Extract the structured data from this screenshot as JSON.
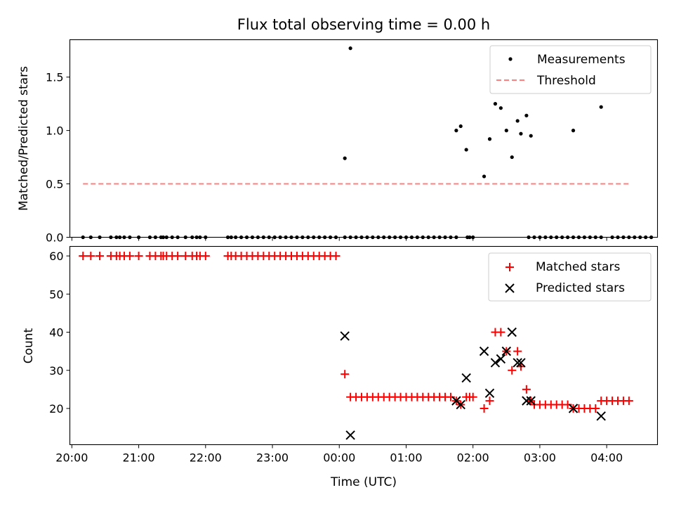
{
  "chart_data": [
    {
      "type": "scatter",
      "title": "Flux total observing time = 0.00 h",
      "xlabel": "",
      "ylabel": "Matched/Predicted stars",
      "ylim": [
        0,
        1.85
      ],
      "xlim_hours": [
        19.97,
        28.76
      ],
      "yticks": [
        0.0,
        0.5,
        1.0,
        1.5
      ],
      "ytick_labels": [
        "0.0",
        "0.5",
        "1.0",
        "1.5"
      ],
      "legend_position": "top-right",
      "colors": {
        "measurements": "#000000",
        "threshold": "#ff7f7f"
      },
      "series": [
        {
          "name": "Measurements",
          "kind": "points",
          "x": [
            "20:10",
            "20:17",
            "20:25",
            "20:35",
            "20:40",
            "20:43",
            "20:47",
            "20:52",
            "21:00",
            "21:10",
            "21:15",
            "21:20",
            "21:22",
            "21:25",
            "21:30",
            "21:35",
            "21:42",
            "21:48",
            "21:52",
            "21:55",
            "22:00",
            "22:20",
            "22:23",
            "22:27",
            "22:32",
            "22:37",
            "22:42",
            "22:47",
            "22:52",
            "22:57",
            "23:02",
            "23:07",
            "23:12",
            "23:17",
            "23:22",
            "23:27",
            "23:32",
            "23:37",
            "23:42",
            "23:47",
            "23:52",
            "23:57",
            "00:05",
            "00:10",
            "00:15",
            "00:20",
            "00:25",
            "00:30",
            "00:35",
            "00:40",
            "00:45",
            "00:50",
            "00:55",
            "01:00",
            "01:05",
            "01:10",
            "01:15",
            "01:20",
            "01:25",
            "01:30",
            "01:35",
            "01:40",
            "01:45",
            "01:55",
            "01:57",
            "02:00",
            "02:50",
            "02:55",
            "03:00",
            "03:05",
            "03:10",
            "03:15",
            "03:20",
            "03:25",
            "03:30",
            "03:35",
            "03:40",
            "03:45",
            "03:50",
            "03:55",
            "04:05",
            "04:10",
            "04:15",
            "04:20",
            "04:25",
            "04:30",
            "04:35",
            "04:40",
            "00:05",
            "00:10",
            "01:45",
            "01:49",
            "01:54",
            "02:10",
            "02:15",
            "02:20",
            "02:25",
            "02:30",
            "02:35",
            "02:40",
            "02:43",
            "02:48",
            "02:52",
            "03:30",
            "03:55"
          ],
          "y": [
            0,
            0,
            0,
            0,
            0,
            0,
            0,
            0,
            0,
            0,
            0,
            0,
            0,
            0,
            0,
            0,
            0,
            0,
            0,
            0,
            0,
            0,
            0,
            0,
            0,
            0,
            0,
            0,
            0,
            0,
            0,
            0,
            0,
            0,
            0,
            0,
            0,
            0,
            0,
            0,
            0,
            0,
            0,
            0,
            0,
            0,
            0,
            0,
            0,
            0,
            0,
            0,
            0,
            0,
            0,
            0,
            0,
            0,
            0,
            0,
            0,
            0,
            0,
            0,
            0,
            0,
            0,
            0,
            0,
            0,
            0,
            0,
            0,
            0,
            0,
            0,
            0,
            0,
            0,
            0,
            0,
            0,
            0,
            0,
            0,
            0,
            0,
            0,
            0.74,
            1.77,
            1.0,
            1.04,
            0.82,
            0.57,
            0.92,
            1.25,
            1.21,
            1.0,
            0.75,
            1.09,
            0.97,
            1.14,
            0.95,
            1.0,
            1.22
          ]
        },
        {
          "name": "Threshold",
          "kind": "dashed-line",
          "x": [
            "20:10",
            "04:20"
          ],
          "y": [
            0.5,
            0.5
          ]
        }
      ]
    },
    {
      "type": "scatter",
      "title": "",
      "xlabel": "Time (UTC)",
      "ylabel": "Count",
      "ylim": [
        10.5,
        62.5
      ],
      "yticks": [
        20,
        30,
        40,
        50,
        60
      ],
      "ytick_labels": [
        "20",
        "30",
        "40",
        "50",
        "60"
      ],
      "xticks": [
        "20:00",
        "21:00",
        "22:00",
        "23:00",
        "00:00",
        "01:00",
        "02:00",
        "03:00",
        "04:00"
      ],
      "legend_position": "top-right",
      "colors": {
        "matched": "#ff0000",
        "predicted": "#000000"
      },
      "series": [
        {
          "name": "Matched stars",
          "marker": "plus",
          "x": [
            "20:10",
            "20:17",
            "20:25",
            "20:35",
            "20:40",
            "20:43",
            "20:47",
            "20:52",
            "21:00",
            "21:10",
            "21:15",
            "21:20",
            "21:22",
            "21:25",
            "21:30",
            "21:35",
            "21:42",
            "21:48",
            "21:52",
            "21:55",
            "22:00",
            "22:20",
            "22:23",
            "22:27",
            "22:32",
            "22:37",
            "22:42",
            "22:47",
            "22:52",
            "22:57",
            "23:02",
            "23:07",
            "23:12",
            "23:17",
            "23:22",
            "23:27",
            "23:32",
            "23:37",
            "23:42",
            "23:47",
            "23:52",
            "23:57",
            "00:05",
            "00:10",
            "00:15",
            "00:20",
            "00:25",
            "00:30",
            "00:35",
            "00:40",
            "00:45",
            "00:50",
            "00:55",
            "01:00",
            "01:05",
            "01:10",
            "01:15",
            "01:20",
            "01:25",
            "01:30",
            "01:35",
            "01:40",
            "01:45",
            "01:49",
            "01:54",
            "01:57",
            "02:00",
            "02:10",
            "02:15",
            "02:20",
            "02:25",
            "02:30",
            "02:35",
            "02:40",
            "02:43",
            "02:48",
            "02:52",
            "02:55",
            "03:00",
            "03:05",
            "03:10",
            "03:15",
            "03:20",
            "03:25",
            "03:30",
            "03:35",
            "03:40",
            "03:45",
            "03:50",
            "03:55",
            "04:00",
            "04:05",
            "04:10",
            "04:15",
            "04:20"
          ],
          "y": [
            60,
            60,
            60,
            60,
            60,
            60,
            60,
            60,
            60,
            60,
            60,
            60,
            60,
            60,
            60,
            60,
            60,
            60,
            60,
            60,
            60,
            60,
            60,
            60,
            60,
            60,
            60,
            60,
            60,
            60,
            60,
            60,
            60,
            60,
            60,
            60,
            60,
            60,
            60,
            60,
            60,
            60,
            29,
            23,
            23,
            23,
            23,
            23,
            23,
            23,
            23,
            23,
            23,
            23,
            23,
            23,
            23,
            23,
            23,
            23,
            23,
            23,
            22,
            21,
            23,
            23,
            23,
            20,
            22,
            40,
            40,
            35,
            30,
            35,
            31,
            25,
            22,
            21,
            21,
            21,
            21,
            21,
            21,
            21,
            20,
            20,
            20,
            20,
            20,
            22,
            22,
            22,
            22,
            22,
            22
          ]
        },
        {
          "name": "Predicted stars",
          "marker": "x",
          "x": [
            "00:05",
            "00:10",
            "01:45",
            "01:49",
            "01:54",
            "02:10",
            "02:15",
            "02:20",
            "02:25",
            "02:30",
            "02:35",
            "02:40",
            "02:43",
            "02:48",
            "02:52",
            "03:30",
            "03:55"
          ],
          "y": [
            39,
            13,
            22,
            21,
            28,
            35,
            24,
            32,
            33,
            35,
            40,
            32,
            32,
            22,
            22,
            20,
            18
          ]
        }
      ]
    }
  ]
}
